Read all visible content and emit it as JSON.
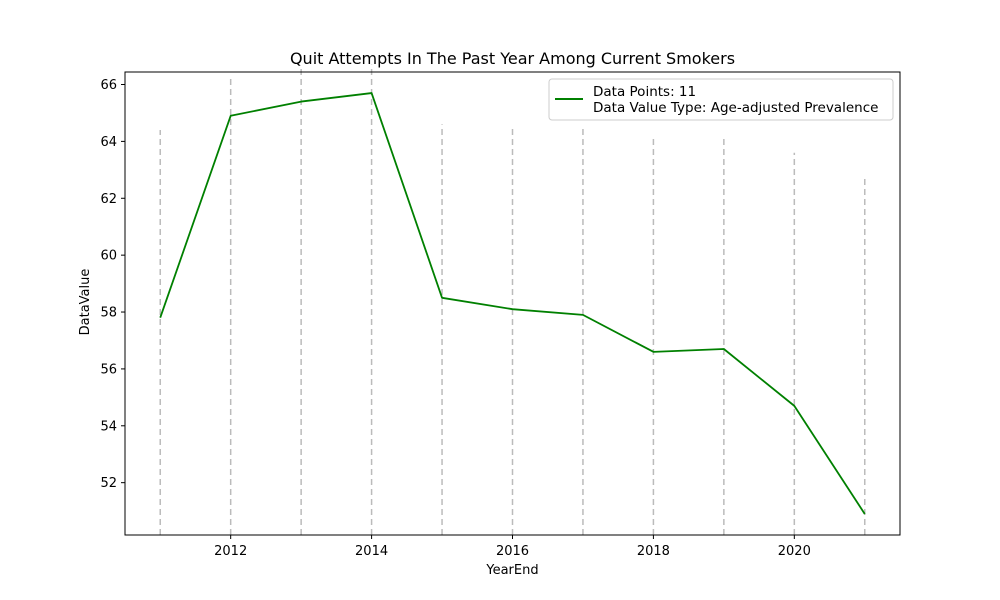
{
  "chart_data": {
    "type": "line",
    "title": "Quit Attempts In The Past Year Among Current Smokers",
    "xlabel": "YearEnd",
    "ylabel": "DataValue",
    "x": [
      2011,
      2012,
      2013,
      2014,
      2015,
      2016,
      2017,
      2018,
      2019,
      2020,
      2021
    ],
    "series": [
      {
        "name": "Data Points: 11\nData Value Type: Age-adjusted Prevalence",
        "values": [
          57.8,
          64.9,
          65.4,
          65.7,
          58.5,
          58.1,
          57.9,
          56.6,
          56.7,
          54.7,
          50.9
        ],
        "color": "#008000"
      }
    ],
    "stems": [
      {
        "x": 2011,
        "y_top": 64.4
      },
      {
        "x": 2012,
        "y_top": 66.2
      },
      {
        "x": 2013,
        "y_top": 66.6
      },
      {
        "x": 2014,
        "y_top": 66.7
      },
      {
        "x": 2015,
        "y_top": 64.6
      },
      {
        "x": 2016,
        "y_top": 64.5
      },
      {
        "x": 2017,
        "y_top": 64.5
      },
      {
        "x": 2018,
        "y_top": 64.1
      },
      {
        "x": 2019,
        "y_top": 64.2
      },
      {
        "x": 2020,
        "y_top": 63.6
      },
      {
        "x": 2021,
        "y_top": 62.8
      }
    ],
    "stem_color": "#bbbbbb",
    "x_ticks": [
      2012,
      2014,
      2016,
      2018,
      2020
    ],
    "y_ticks": [
      52,
      54,
      56,
      58,
      60,
      62,
      64,
      66
    ],
    "xlim": [
      2010.5,
      2021.5
    ],
    "ylim": [
      50.16,
      66.44
    ],
    "legend": {
      "placement": "top-right",
      "line1": "Data Points: 11",
      "line2": "Data Value Type: Age-adjusted Prevalence"
    },
    "grid": false
  }
}
